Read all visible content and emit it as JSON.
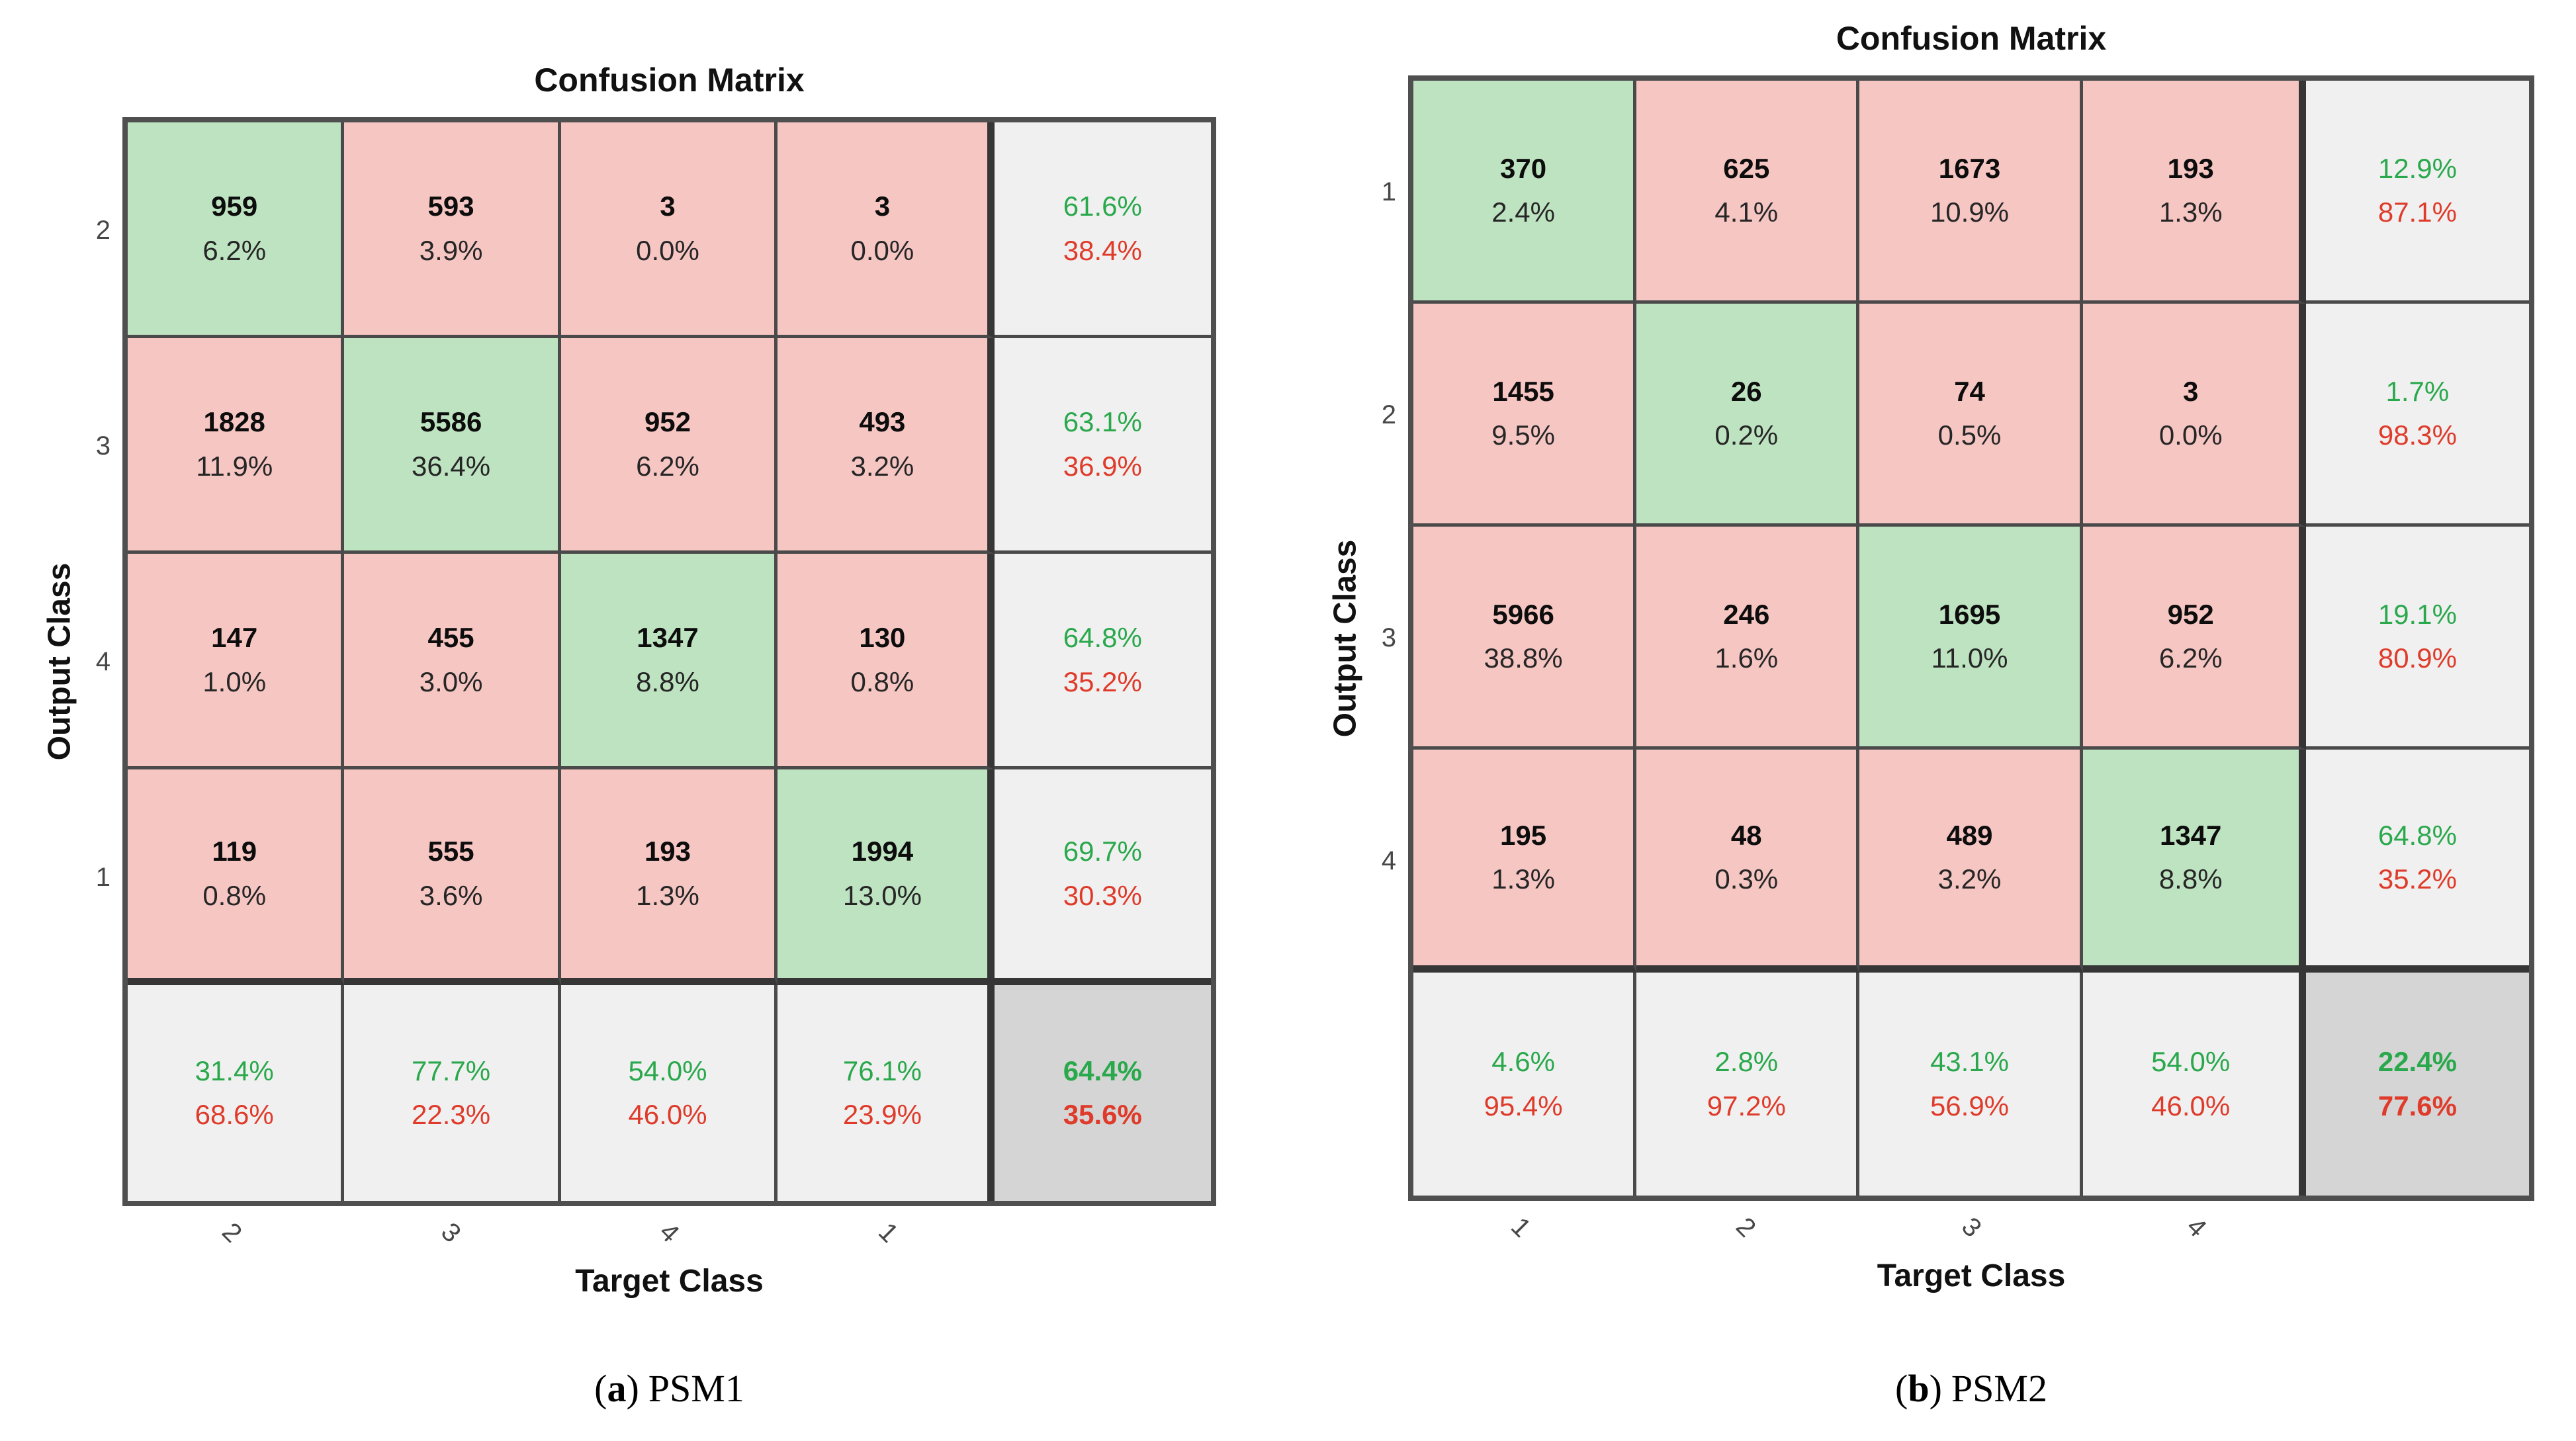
{
  "page": {
    "background": "#ffffff"
  },
  "colors": {
    "diag_fill": "#BEE3C1",
    "off_fill": "#F6C6C3",
    "summary_fill": "#F0F0F0",
    "total_fill": "#D5D5D5",
    "green_text": "#2AA84C",
    "red_text": "#DF3B2B",
    "grid_line": "#4A4A4A",
    "grid_sep": "#363636",
    "frame": "#4F4F4F",
    "tick_text": "#474747",
    "ink": "#111111",
    "page_bg": "#ffffff"
  },
  "chart_data": [
    {
      "type": "heatmap",
      "subtype": "confusion_matrix",
      "title": "Confusion Matrix",
      "xlabel": "Target Class",
      "ylabel": "Output Class",
      "caption": {
        "open": "(",
        "letter": "a",
        "close": ")",
        "label": "PSM1"
      },
      "row_labels": [
        "2",
        "3",
        "4",
        "1"
      ],
      "col_labels": [
        "2",
        "3",
        "4",
        "1"
      ],
      "cells": [
        [
          {
            "count": "959",
            "pct": "6.2%",
            "diag": true
          },
          {
            "count": "593",
            "pct": "3.9%",
            "diag": false
          },
          {
            "count": "3",
            "pct": "0.0%",
            "diag": false
          },
          {
            "count": "3",
            "pct": "0.0%",
            "diag": false
          }
        ],
        [
          {
            "count": "1828",
            "pct": "11.9%",
            "diag": false
          },
          {
            "count": "5586",
            "pct": "36.4%",
            "diag": true
          },
          {
            "count": "952",
            "pct": "6.2%",
            "diag": false
          },
          {
            "count": "493",
            "pct": "3.2%",
            "diag": false
          }
        ],
        [
          {
            "count": "147",
            "pct": "1.0%",
            "diag": false
          },
          {
            "count": "455",
            "pct": "3.0%",
            "diag": false
          },
          {
            "count": "1347",
            "pct": "8.8%",
            "diag": true
          },
          {
            "count": "130",
            "pct": "0.8%",
            "diag": false
          }
        ],
        [
          {
            "count": "119",
            "pct": "0.8%",
            "diag": false
          },
          {
            "count": "555",
            "pct": "3.6%",
            "diag": false
          },
          {
            "count": "193",
            "pct": "1.3%",
            "diag": false
          },
          {
            "count": "1994",
            "pct": "13.0%",
            "diag": true
          }
        ]
      ],
      "row_summary": [
        [
          "61.6%",
          "38.4%"
        ],
        [
          "63.1%",
          "36.9%"
        ],
        [
          "64.8%",
          "35.2%"
        ],
        [
          "69.7%",
          "30.3%"
        ]
      ],
      "col_summary": [
        [
          "31.4%",
          "68.6%"
        ],
        [
          "77.7%",
          "22.3%"
        ],
        [
          "54.0%",
          "46.0%"
        ],
        [
          "76.1%",
          "23.9%"
        ]
      ],
      "total": [
        "64.4%",
        "35.6%"
      ]
    },
    {
      "type": "heatmap",
      "subtype": "confusion_matrix",
      "title": "Confusion Matrix",
      "xlabel": "Target Class",
      "ylabel": "Output Class",
      "caption": {
        "open": "(",
        "letter": "b",
        "close": ")",
        "label": "PSM2"
      },
      "row_labels": [
        "1",
        "2",
        "3",
        "4"
      ],
      "col_labels": [
        "1",
        "2",
        "3",
        "4"
      ],
      "cells": [
        [
          {
            "count": "370",
            "pct": "2.4%",
            "diag": true
          },
          {
            "count": "625",
            "pct": "4.1%",
            "diag": false
          },
          {
            "count": "1673",
            "pct": "10.9%",
            "diag": false
          },
          {
            "count": "193",
            "pct": "1.3%",
            "diag": false
          }
        ],
        [
          {
            "count": "1455",
            "pct": "9.5%",
            "diag": false
          },
          {
            "count": "26",
            "pct": "0.2%",
            "diag": true
          },
          {
            "count": "74",
            "pct": "0.5%",
            "diag": false
          },
          {
            "count": "3",
            "pct": "0.0%",
            "diag": false
          }
        ],
        [
          {
            "count": "5966",
            "pct": "38.8%",
            "diag": false
          },
          {
            "count": "246",
            "pct": "1.6%",
            "diag": false
          },
          {
            "count": "1695",
            "pct": "11.0%",
            "diag": true
          },
          {
            "count": "952",
            "pct": "6.2%",
            "diag": false
          }
        ],
        [
          {
            "count": "195",
            "pct": "1.3%",
            "diag": false
          },
          {
            "count": "48",
            "pct": "0.3%",
            "diag": false
          },
          {
            "count": "489",
            "pct": "3.2%",
            "diag": false
          },
          {
            "count": "1347",
            "pct": "8.8%",
            "diag": true
          }
        ]
      ],
      "row_summary": [
        [
          "12.9%",
          "87.1%"
        ],
        [
          "1.7%",
          "98.3%"
        ],
        [
          "19.1%",
          "80.9%"
        ],
        [
          "64.8%",
          "35.2%"
        ]
      ],
      "col_summary": [
        [
          "4.6%",
          "95.4%"
        ],
        [
          "2.8%",
          "97.2%"
        ],
        [
          "43.1%",
          "56.9%"
        ],
        [
          "54.0%",
          "46.0%"
        ]
      ],
      "total": [
        "22.4%",
        "77.6%"
      ]
    }
  ]
}
